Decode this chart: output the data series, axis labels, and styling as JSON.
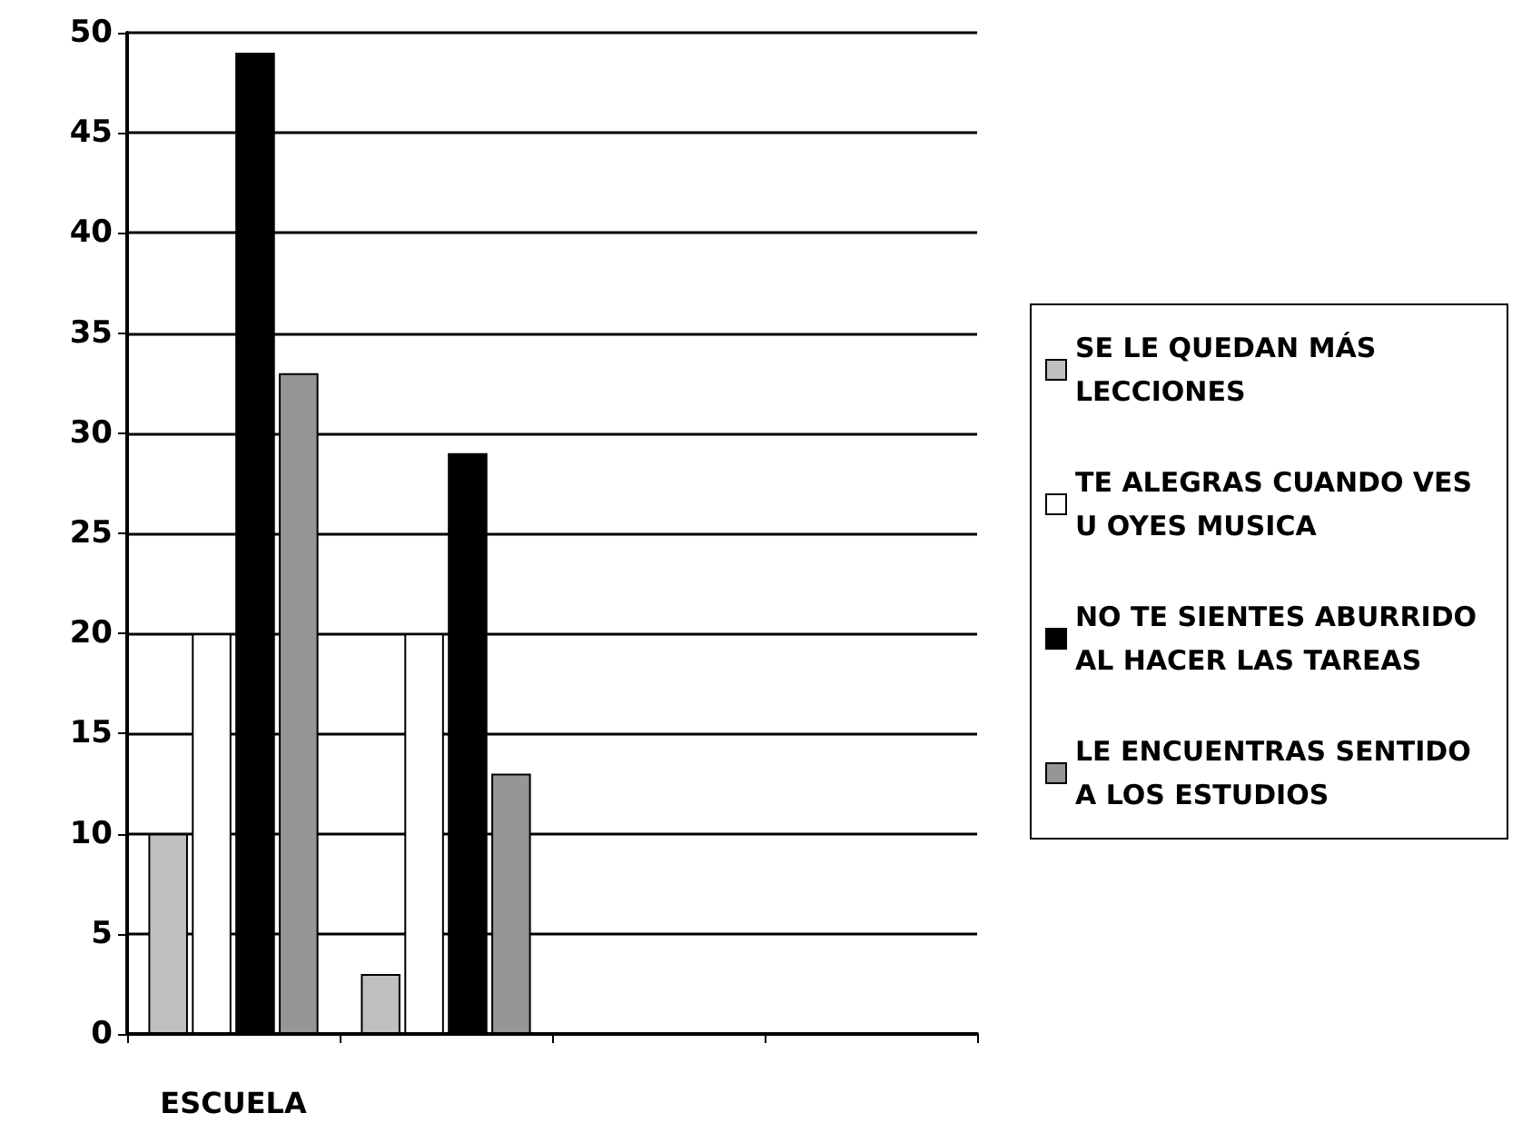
{
  "chart_data": {
    "type": "bar",
    "categories": [
      "ESCUELA",
      null,
      null,
      null
    ],
    "series": [
      {
        "name": "SE LE QUEDAN MÁS LECCIONES",
        "color": "#c0c0c0",
        "values": [
          10,
          3,
          null,
          null
        ]
      },
      {
        "name": "TE ALEGRAS CUANDO VES U OYES MUSICA",
        "color": "#ffffff",
        "values": [
          20,
          20,
          null,
          null
        ]
      },
      {
        "name": "NO TE SIENTES ABURRIDO AL HACER LAS TAREAS",
        "color": "#000000",
        "values": [
          49,
          29,
          null,
          null
        ]
      },
      {
        "name": "LE ENCUENTRAS SENTIDO A LOS ESTUDIOS",
        "color": "#969696",
        "values": [
          33,
          13,
          null,
          null
        ]
      }
    ],
    "ylim": [
      0,
      50
    ],
    "yticks": [
      0,
      5,
      10,
      15,
      20,
      25,
      30,
      35,
      40,
      45,
      50
    ],
    "grid": "y",
    "legend": "right"
  }
}
